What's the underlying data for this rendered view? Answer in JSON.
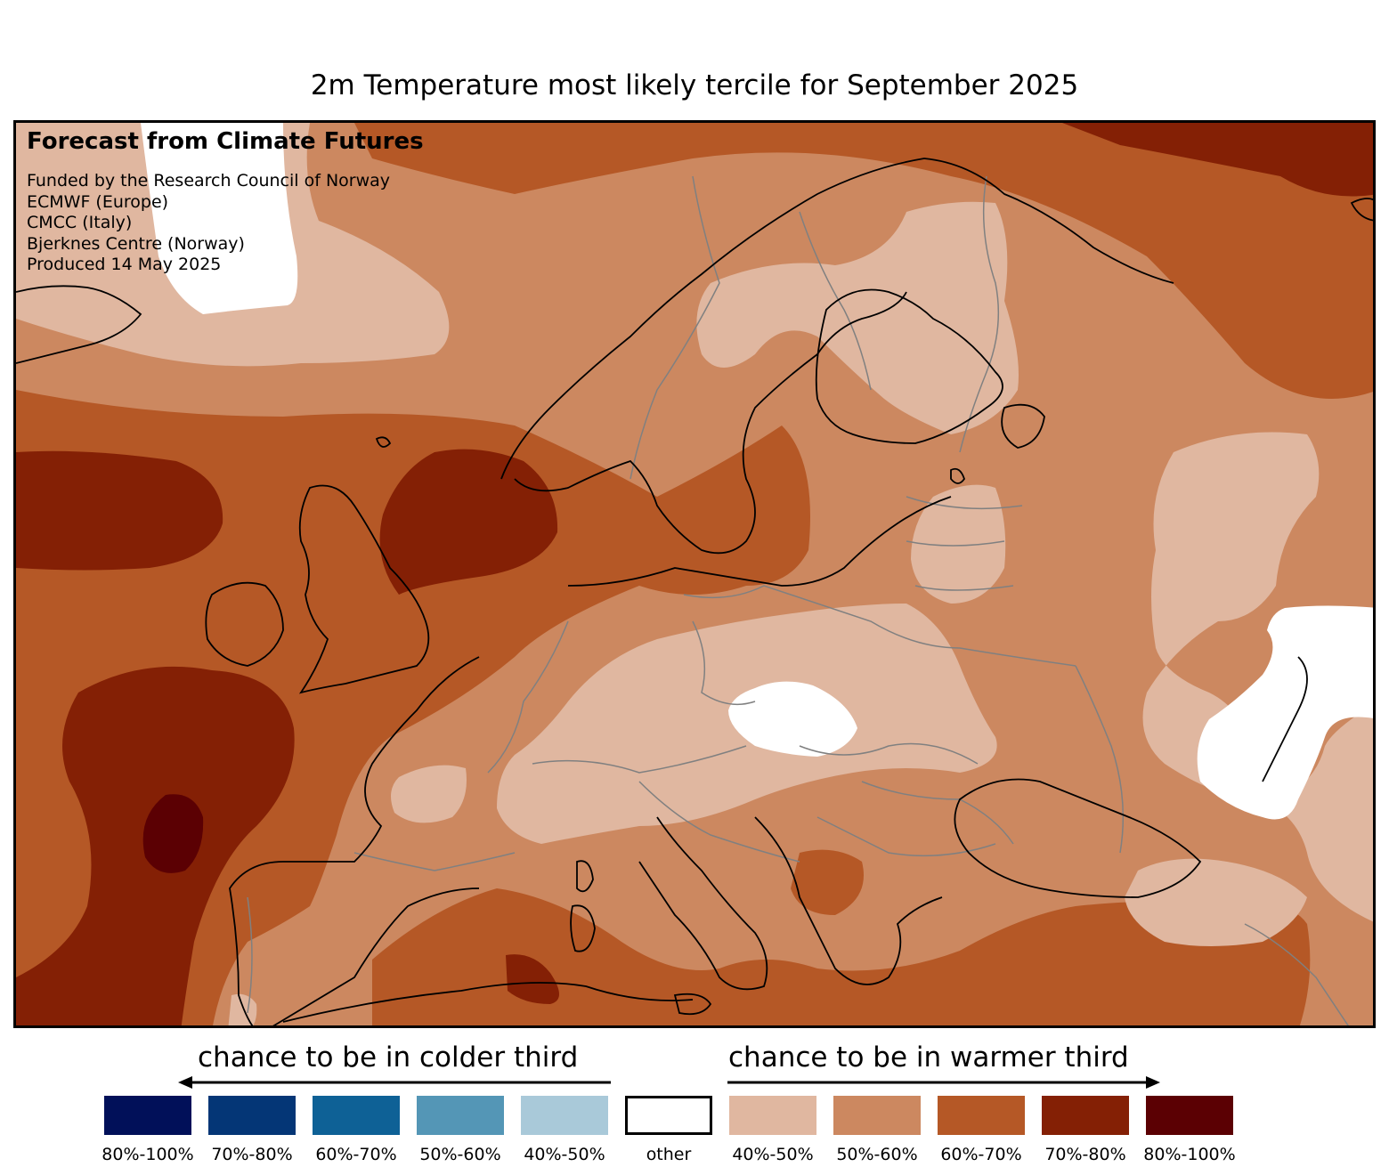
{
  "title": "2m Temperature most likely tercile for September 2025",
  "credits": {
    "heading": "Forecast from Climate Futures",
    "lines": [
      "Funded by the Research Council of Norway",
      "ECMWF (Europe)",
      "CMCC (Italy)",
      "Bjerknes Centre (Norway)",
      "Produced 14 May 2025"
    ]
  },
  "legend": {
    "colder_label": "chance to be in colder third",
    "warmer_label": "chance to be in warmer third",
    "items": [
      {
        "label": "80%-100%",
        "color": "#011059",
        "side": "colder"
      },
      {
        "label": "70%-80%",
        "color": "#043676",
        "side": "colder"
      },
      {
        "label": "60%-70%",
        "color": "#0e6196",
        "side": "colder"
      },
      {
        "label": "50%-60%",
        "color": "#5496b6",
        "side": "colder"
      },
      {
        "label": "40%-50%",
        "color": "#a9c9d9",
        "side": "colder"
      },
      {
        "label": "other",
        "color": "#ffffff",
        "side": "neutral"
      },
      {
        "label": "40%-50%",
        "color": "#e0b7a0",
        "side": "warmer"
      },
      {
        "label": "50%-60%",
        "color": "#cc8860",
        "side": "warmer"
      },
      {
        "label": "60%-70%",
        "color": "#b55826",
        "side": "warmer"
      },
      {
        "label": "70%-80%",
        "color": "#842005",
        "side": "warmer"
      },
      {
        "label": "80%-100%",
        "color": "#5b0003",
        "side": "warmer"
      }
    ]
  },
  "map": {
    "region": "Europe",
    "variable": "2m Temperature",
    "dominant_category": "warmer third",
    "colors": {
      "w40": "#e0b7a0",
      "w50": "#cc8860",
      "w60": "#b55826",
      "w70": "#842005",
      "w80": "#5b0003",
      "other": "#ffffff",
      "coast": "#000000",
      "border": "#808080"
    }
  }
}
